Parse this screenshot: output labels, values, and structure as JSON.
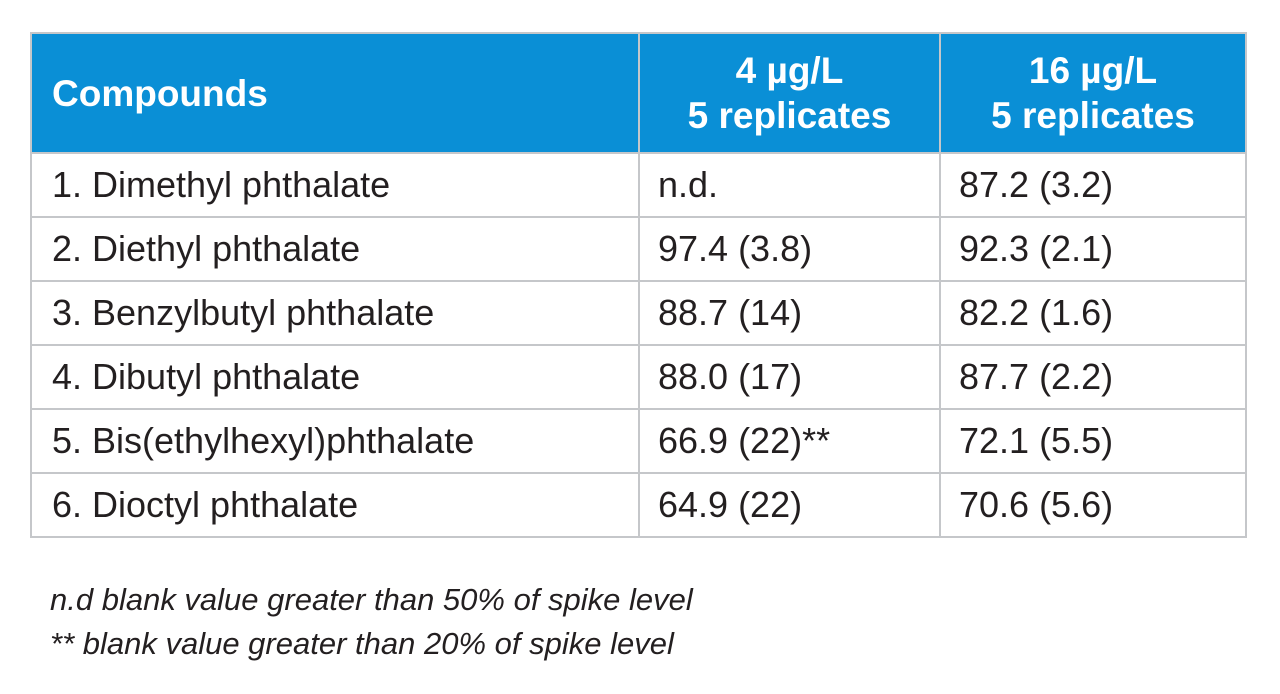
{
  "table": {
    "headers": {
      "compounds": "Compounds",
      "col_4": {
        "line1": "4 µg/L",
        "line2": "5 replicates"
      },
      "col_16": {
        "line1": "16 µg/L",
        "line2": "5 replicates"
      }
    },
    "rows": [
      {
        "compound": "1. Dimethyl phthalate",
        "v4": "n.d.",
        "v16": "87.2 (3.2)"
      },
      {
        "compound": "2. Diethyl phthalate",
        "v4": "97.4 (3.8)",
        "v16": "92.3 (2.1)"
      },
      {
        "compound": "3. Benzylbutyl phthalate",
        "v4": "88.7 (14)",
        "v16": "82.2 (1.6)"
      },
      {
        "compound": "4. Dibutyl phthalate",
        "v4": "88.0 (17)",
        "v16": "87.7 (2.2)"
      },
      {
        "compound": "5. Bis(ethylhexyl)phthalate",
        "v4": "66.9 (22)**",
        "v16": "72.1 (5.5)"
      },
      {
        "compound": "6. Dioctyl phthalate",
        "v4": "64.9 (22)",
        "v16": "70.6 (5.6)"
      }
    ]
  },
  "footnotes": [
    "n.d  blank value greater than 50% of spike level",
    "** blank value greater than 20% of spike level"
  ],
  "colors": {
    "header_bg": "#0a8fd6",
    "header_text": "#ffffff",
    "border": "#c5c7ca",
    "text": "#231f20"
  }
}
